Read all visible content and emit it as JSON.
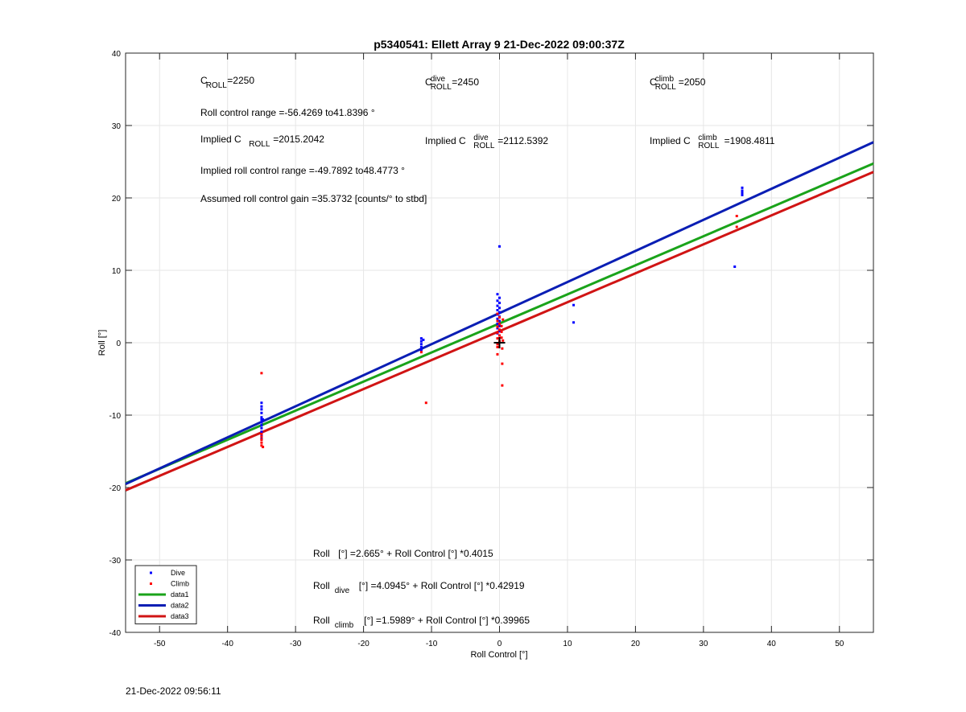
{
  "chart_data": {
    "type": "scatter",
    "title": "p5340541: Ellett Array 9 21-Dec-2022 09:00:37Z",
    "xlabel": "Roll Control [°]",
    "ylabel": "Roll [°]",
    "xlim": [
      -55,
      55
    ],
    "ylim": [
      -40,
      40
    ],
    "xticks": [
      -50,
      -40,
      -30,
      -20,
      -10,
      0,
      10,
      20,
      30,
      40,
      50
    ],
    "yticks": [
      -40,
      -30,
      -20,
      -10,
      0,
      10,
      20,
      30,
      40
    ],
    "grid": true,
    "legend_position": "bottom-left",
    "legend": [
      {
        "label": "Dive",
        "kind": "marker",
        "color": "#0000ff"
      },
      {
        "label": "Climb",
        "kind": "marker",
        "color": "#ff0000"
      },
      {
        "label": "data1",
        "kind": "line",
        "color": "#1aa31a"
      },
      {
        "label": "data2",
        "kind": "line",
        "color": "#0a1eb4"
      },
      {
        "label": "data3",
        "kind": "line",
        "color": "#d01414"
      }
    ],
    "lines": [
      {
        "name": "data1",
        "intercept": 2.665,
        "slope": 0.4015,
        "color": "#1aa31a"
      },
      {
        "name": "data2",
        "intercept": 4.0945,
        "slope": 0.42919,
        "color": "#0a1eb4"
      },
      {
        "name": "data3",
        "intercept": 1.5989,
        "slope": 0.39965,
        "color": "#d01414"
      }
    ],
    "series": [
      {
        "name": "Dive",
        "color": "#0000ff",
        "points": [
          [
            -35,
            -8.3
          ],
          [
            -35,
            -8.8
          ],
          [
            -35,
            -9.2
          ],
          [
            -35,
            -9.7
          ],
          [
            -35,
            -10.3
          ],
          [
            -35,
            -10.6
          ],
          [
            -35,
            -11.0
          ],
          [
            -35,
            -11.4
          ],
          [
            -35,
            -11.8
          ],
          [
            -35,
            -12.3
          ],
          [
            -35,
            -12.8
          ],
          [
            -35,
            -13.3
          ],
          [
            -34.8,
            -10.6
          ],
          [
            -11.5,
            0.6
          ],
          [
            -11.5,
            0.2
          ],
          [
            -11.5,
            -0.2
          ],
          [
            -11.5,
            -0.6
          ],
          [
            -11.5,
            -1.0
          ],
          [
            -11.2,
            0.4
          ],
          [
            0,
            13.3
          ],
          [
            -0.3,
            6.7
          ],
          [
            0,
            6.2
          ],
          [
            -0.3,
            5.8
          ],
          [
            0,
            5.5
          ],
          [
            -0.3,
            5.1
          ],
          [
            0,
            4.8
          ],
          [
            -0.3,
            4.5
          ],
          [
            0,
            4.2
          ],
          [
            -0.3,
            3.9
          ],
          [
            0,
            3.6
          ],
          [
            -0.3,
            3.3
          ],
          [
            0,
            3.0
          ],
          [
            -0.3,
            2.6
          ],
          [
            0,
            2.3
          ],
          [
            -0.3,
            2.0
          ],
          [
            0,
            1.6
          ],
          [
            -0.3,
            1.3
          ],
          [
            10.9,
            5.2
          ],
          [
            10.9,
            2.8
          ],
          [
            34.6,
            10.5
          ],
          [
            35.7,
            21.4
          ],
          [
            35.7,
            21.0
          ],
          [
            35.7,
            20.7
          ],
          [
            35.7,
            20.4
          ]
        ]
      },
      {
        "name": "Climb",
        "color": "#ff0000",
        "points": [
          [
            -35,
            -4.2
          ],
          [
            -35,
            -12.6
          ],
          [
            -35,
            -13.0
          ],
          [
            -35,
            -13.4
          ],
          [
            -35,
            -13.8
          ],
          [
            -35,
            -14.2
          ],
          [
            -34.8,
            -14.4
          ],
          [
            -11.5,
            -1.3
          ],
          [
            -10.8,
            -8.3
          ],
          [
            -0.3,
            4.0
          ],
          [
            0,
            3.5
          ],
          [
            -0.3,
            3.0
          ],
          [
            0,
            2.6
          ],
          [
            -0.3,
            2.2
          ],
          [
            0,
            1.8
          ],
          [
            -0.3,
            1.4
          ],
          [
            0,
            1.0
          ],
          [
            -0.3,
            0.6
          ],
          [
            0,
            0.2
          ],
          [
            -0.3,
            -0.2
          ],
          [
            0.3,
            0.7
          ],
          [
            0.3,
            1.5
          ],
          [
            0.3,
            2.3
          ],
          [
            0.5,
            3.2
          ],
          [
            0.5,
            0.3
          ],
          [
            -0.3,
            -0.6
          ],
          [
            0.4,
            -0.8
          ],
          [
            -0.3,
            -1.6
          ],
          [
            0.4,
            -2.9
          ],
          [
            0.4,
            -5.9
          ],
          [
            34.9,
            17.5
          ],
          [
            34.9,
            16.0
          ]
        ]
      }
    ],
    "origin_marker": [
      0,
      0
    ],
    "annotations": {
      "c_roll": {
        "base": "C",
        "sub": "ROLL",
        "sup": "",
        "value": "=2250"
      },
      "c_roll_dive": {
        "base": "C",
        "sub": "ROLL",
        "sup": "dive",
        "value": "=2450"
      },
      "c_roll_climb": {
        "base": "C",
        "sub": "ROLL",
        "sup": "climb",
        "value": "=2050"
      },
      "roll_range": "Roll control range =-56.4269 to41.8396 °",
      "implied_c_roll": {
        "prefix": "Implied C",
        "sub": "ROLL",
        "sup": "",
        "value": " =2015.2042"
      },
      "implied_c_roll_dive": {
        "prefix": "Implied C",
        "sub": "ROLL",
        "sup": "dive",
        "value": " =2112.5392"
      },
      "implied_c_roll_climb": {
        "prefix": "Implied C",
        "sub": "ROLL",
        "sup": "climb",
        "value": " =1908.4811"
      },
      "implied_range": "Implied roll control range =-49.7892 to48.4773 °",
      "gain": "Assumed roll control gain =35.3732 [counts/° to stbd]",
      "eq_all": {
        "lhs": "Roll",
        "sub": "",
        "rhs": " [°] =2.665° + Roll Control [°] *0.4015"
      },
      "eq_dive": {
        "lhs": "Roll",
        "sub": "dive",
        "rhs": " [°] =4.0945° + Roll Control [°] *0.42919"
      },
      "eq_climb": {
        "lhs": "Roll",
        "sub": "climb",
        "rhs": " [°] =1.5989° + Roll Control [°] *0.39965"
      }
    }
  },
  "footer": "21-Dec-2022 09:56:11"
}
